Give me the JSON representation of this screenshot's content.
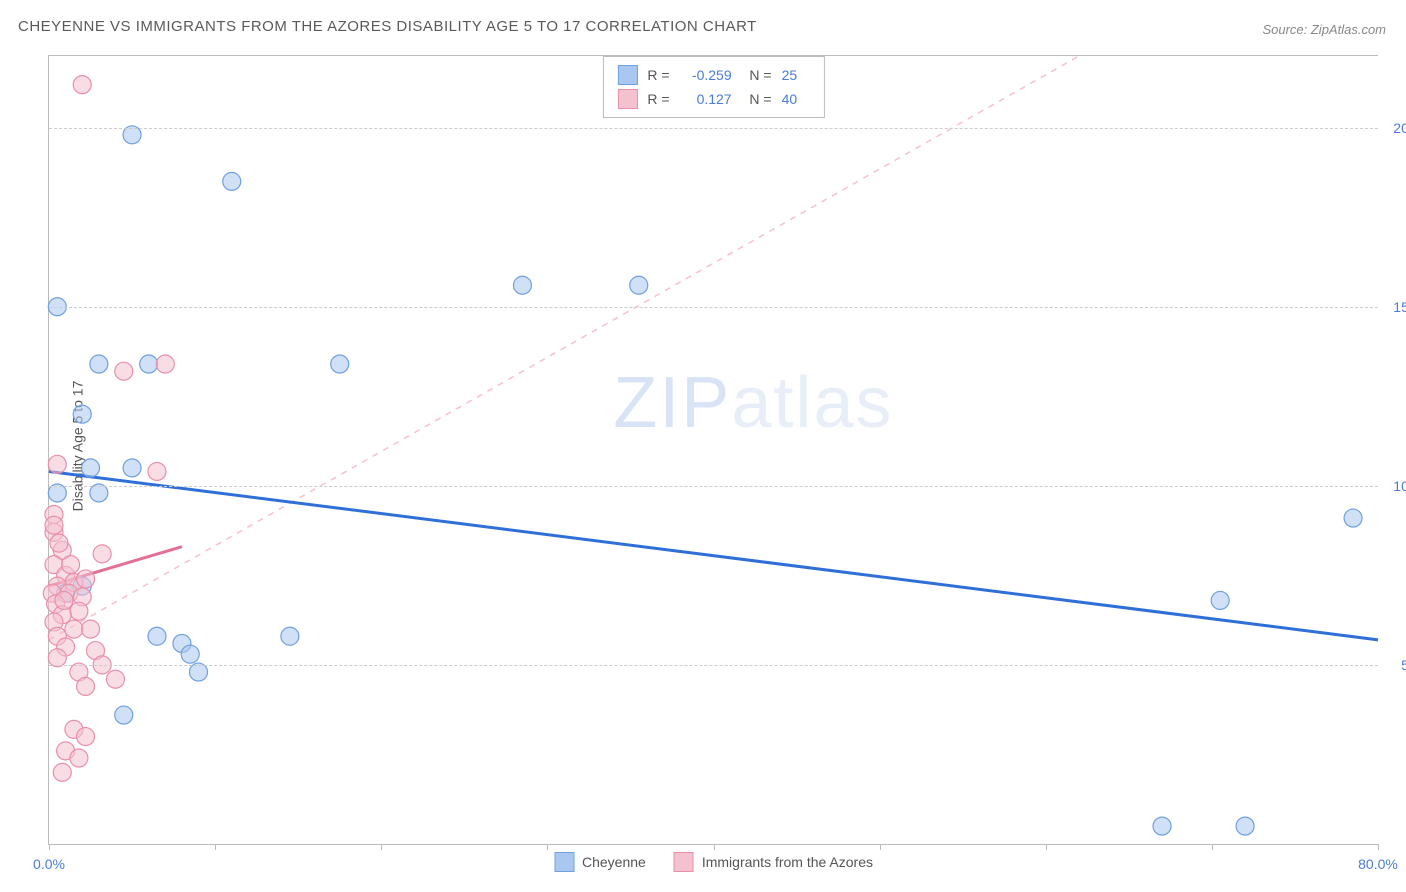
{
  "title": "CHEYENNE VS IMMIGRANTS FROM THE AZORES DISABILITY AGE 5 TO 17 CORRELATION CHART",
  "source": "Source: ZipAtlas.com",
  "y_axis_label": "Disability Age 5 to 17",
  "watermark_bold": "ZIP",
  "watermark_light": "atlas",
  "chart": {
    "type": "scatter",
    "xlim": [
      0,
      80
    ],
    "ylim": [
      0,
      22
    ],
    "x_ticks": [
      0,
      10,
      20,
      30,
      40,
      50,
      60,
      70,
      80
    ],
    "x_tick_labels": {
      "0": "0.0%",
      "80": "80.0%"
    },
    "y_ticks": [
      5,
      10,
      15,
      20
    ],
    "y_tick_labels": {
      "5": "5.0%",
      "10": "10.0%",
      "15": "15.0%",
      "20": "20.0%"
    },
    "grid_color": "#cccccc",
    "background_color": "#ffffff",
    "marker_radius": 9,
    "marker_opacity": 0.55,
    "series": [
      {
        "name": "Cheyenne",
        "color_fill": "#a9c7ef",
        "color_stroke": "#6fa0e0",
        "R": "-0.259",
        "N": "25",
        "trend": {
          "solid": {
            "x1": 0,
            "y1": 10.4,
            "x2": 80,
            "y2": 5.7,
            "color": "#2f6fd8",
            "width": 3
          },
          "dashed": {
            "x1": 0,
            "y1": 5.7,
            "x2": 62,
            "y2": 22,
            "color": "#f5c1cf",
            "width": 1.5
          }
        },
        "points": [
          [
            0.5,
            15.0
          ],
          [
            5.0,
            19.8
          ],
          [
            11.0,
            18.5
          ],
          [
            3.0,
            13.4
          ],
          [
            6.0,
            13.4
          ],
          [
            2.0,
            12.0
          ],
          [
            2.5,
            10.5
          ],
          [
            5.0,
            10.5
          ],
          [
            0.5,
            9.8
          ],
          [
            3.0,
            9.8
          ],
          [
            17.5,
            13.4
          ],
          [
            28.5,
            15.6
          ],
          [
            35.5,
            15.6
          ],
          [
            14.5,
            5.8
          ],
          [
            6.5,
            5.8
          ],
          [
            8.0,
            5.6
          ],
          [
            8.5,
            5.3
          ],
          [
            9.0,
            4.8
          ],
          [
            4.5,
            3.6
          ],
          [
            2.0,
            7.2
          ],
          [
            1.0,
            7.0
          ],
          [
            78.5,
            9.1
          ],
          [
            70.5,
            6.8
          ],
          [
            67.0,
            0.5
          ],
          [
            72.0,
            0.5
          ]
        ]
      },
      {
        "name": "Immigrants from the Azores",
        "color_fill": "#f4c1cf",
        "color_stroke": "#e98fab",
        "R": "0.127",
        "N": "40",
        "trend": {
          "solid": {
            "x1": 0,
            "y1": 7.2,
            "x2": 8,
            "y2": 8.3,
            "color": "#e36f94",
            "width": 3
          }
        },
        "points": [
          [
            2.0,
            21.2
          ],
          [
            7.0,
            13.4
          ],
          [
            4.5,
            13.2
          ],
          [
            0.5,
            10.6
          ],
          [
            6.5,
            10.4
          ],
          [
            0.3,
            9.2
          ],
          [
            0.3,
            8.7
          ],
          [
            0.8,
            8.2
          ],
          [
            3.2,
            8.1
          ],
          [
            0.3,
            7.8
          ],
          [
            1.0,
            7.5
          ],
          [
            1.5,
            7.3
          ],
          [
            0.5,
            7.2
          ],
          [
            0.2,
            7.0
          ],
          [
            1.2,
            7.0
          ],
          [
            2.0,
            6.9
          ],
          [
            0.4,
            6.7
          ],
          [
            1.8,
            6.5
          ],
          [
            0.8,
            6.4
          ],
          [
            0.3,
            6.2
          ],
          [
            1.5,
            6.0
          ],
          [
            2.5,
            6.0
          ],
          [
            0.5,
            5.8
          ],
          [
            1.0,
            5.5
          ],
          [
            2.8,
            5.4
          ],
          [
            0.5,
            5.2
          ],
          [
            3.2,
            5.0
          ],
          [
            1.8,
            4.8
          ],
          [
            4.0,
            4.6
          ],
          [
            2.2,
            4.4
          ],
          [
            1.5,
            3.2
          ],
          [
            2.2,
            3.0
          ],
          [
            1.0,
            2.6
          ],
          [
            1.8,
            2.4
          ],
          [
            0.8,
            2.0
          ],
          [
            0.3,
            8.9
          ],
          [
            0.6,
            8.4
          ],
          [
            1.3,
            7.8
          ],
          [
            2.2,
            7.4
          ],
          [
            0.9,
            6.8
          ]
        ]
      }
    ]
  },
  "legend": {
    "series1_label": "Cheyenne",
    "series2_label": "Immigrants from the Azores"
  }
}
